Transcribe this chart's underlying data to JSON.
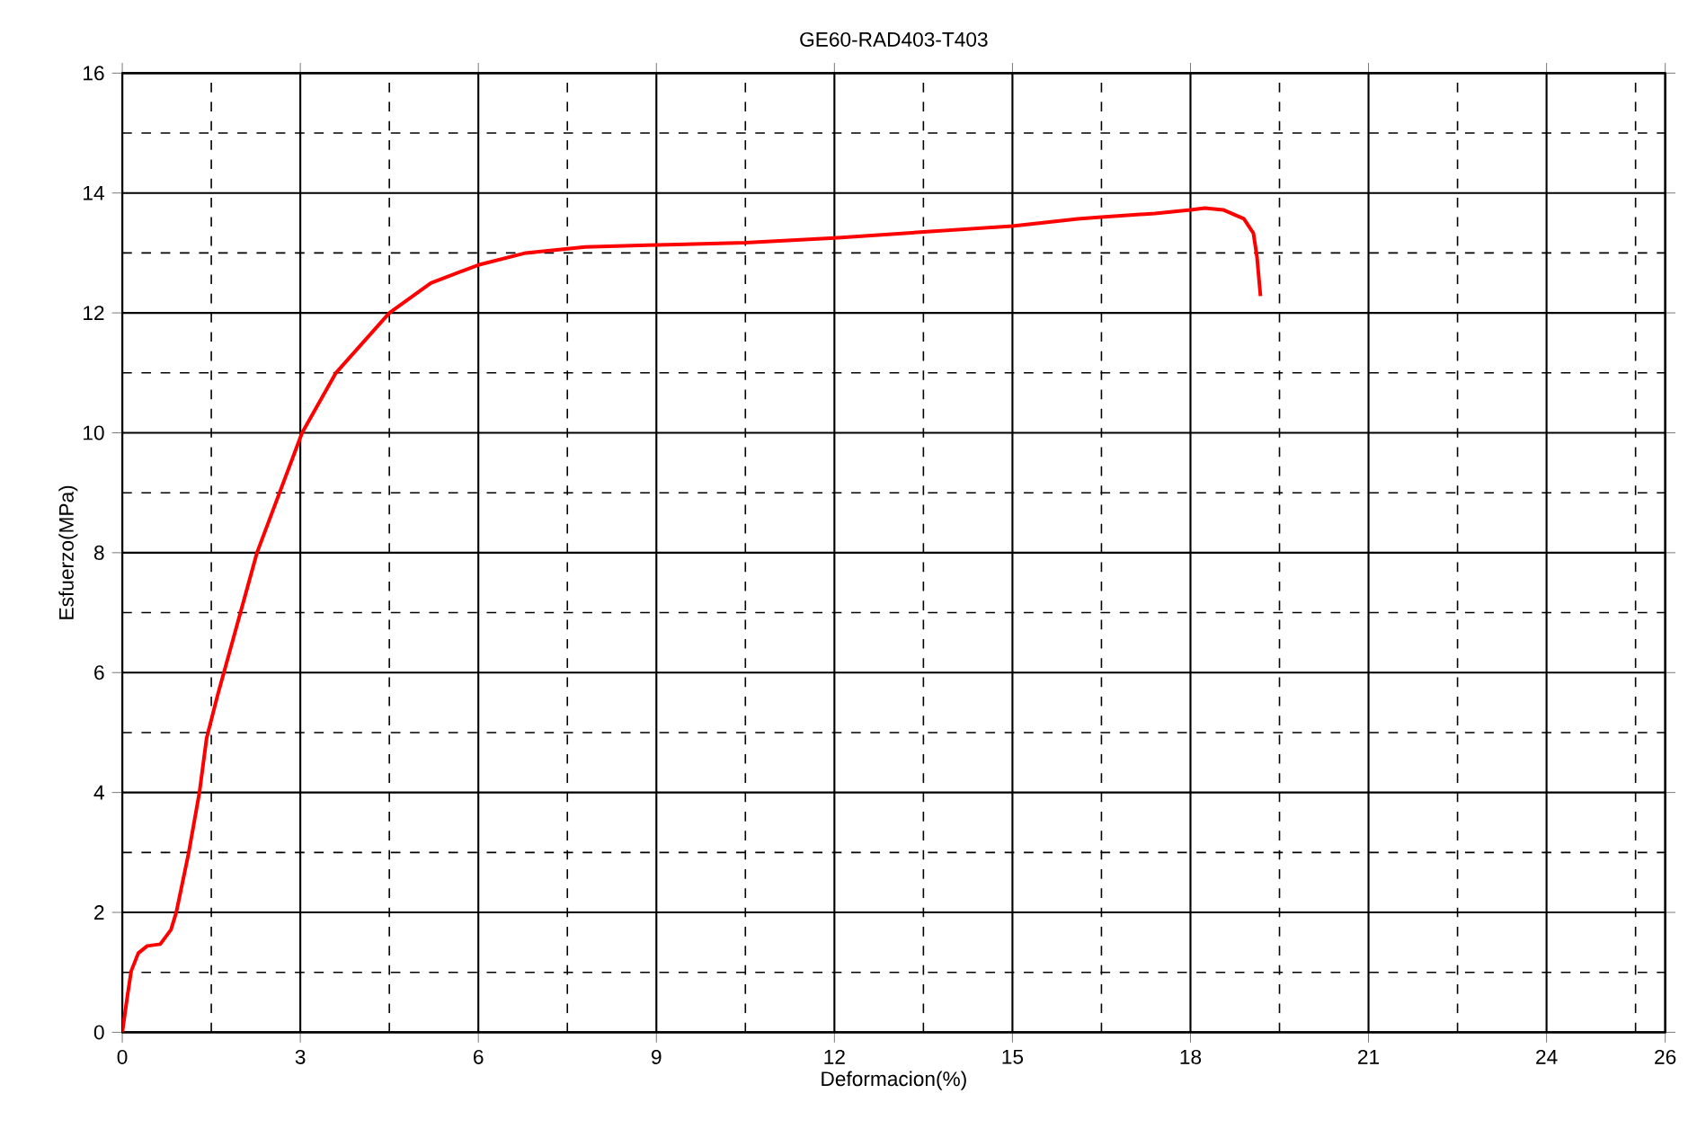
{
  "chart_data": {
    "type": "line",
    "title": "GE60-RAD403-T403",
    "xlabel": "Deformacion(%)",
    "ylabel": "Esfuerzo(MPa)",
    "xlim": [
      0,
      26
    ],
    "ylim": [
      0,
      16
    ],
    "xticks": [
      0,
      3,
      6,
      9,
      12,
      15,
      18,
      21,
      24,
      26
    ],
    "yticks": [
      0,
      2,
      4,
      6,
      8,
      10,
      12,
      14,
      16
    ],
    "grid": true,
    "marker": "none",
    "line_style": "solid",
    "series": [
      {
        "color": "#ff0000",
        "x": [
          0,
          0.09,
          0.15,
          0.27,
          0.42,
          0.64,
          0.82,
          0.91,
          1.12,
          1.3,
          1.42,
          1.6,
          2.27,
          3.03,
          3.6,
          4.5,
          5.2,
          6.0,
          6.8,
          7.8,
          8.85,
          10.5,
          12,
          13.5,
          15,
          16.1,
          16.5,
          17.4,
          18.0,
          18.24,
          18.55,
          18.9,
          19.06,
          19.12,
          19.18
        ],
        "values": [
          0,
          0.63,
          1.02,
          1.32,
          1.44,
          1.47,
          1.71,
          2.0,
          3.0,
          4.0,
          4.9,
          5.6,
          8.0,
          10.0,
          11.0,
          12.0,
          12.5,
          12.8,
          13.0,
          13.1,
          13.13,
          13.17,
          13.25,
          13.35,
          13.45,
          13.57,
          13.6,
          13.66,
          13.72,
          13.75,
          13.72,
          13.57,
          13.33,
          12.94,
          12.28
        ]
      }
    ]
  }
}
